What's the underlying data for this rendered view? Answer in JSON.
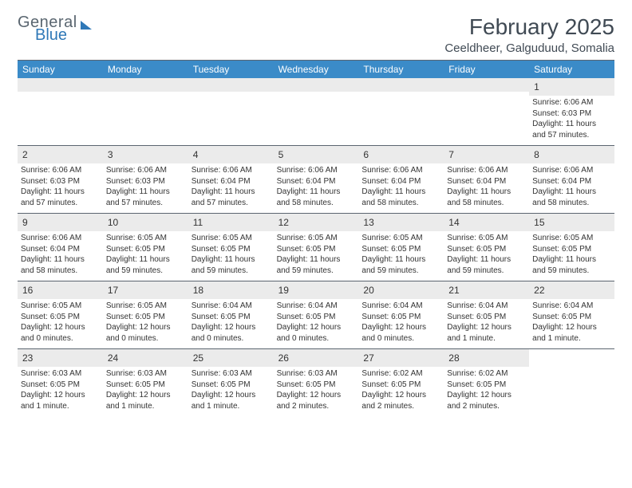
{
  "logo": {
    "text1": "General",
    "text2": "Blue"
  },
  "header": {
    "month_title": "February 2025",
    "location": "Ceeldheer, Galguduud, Somalia"
  },
  "colors": {
    "header_bar": "#3b8bc8",
    "daynum_bg": "#ebebeb",
    "rule": "#5b6570",
    "text": "#333333",
    "logo_gray": "#5a6670",
    "logo_blue": "#2f78b7",
    "background": "#ffffff"
  },
  "typography": {
    "title_fontsize": 28,
    "location_fontsize": 15,
    "dow_fontsize": 12,
    "daynum_fontsize": 12,
    "info_fontsize": 10
  },
  "days_of_week": [
    "Sunday",
    "Monday",
    "Tuesday",
    "Wednesday",
    "Thursday",
    "Friday",
    "Saturday"
  ],
  "weeks": [
    [
      {
        "n": "",
        "sunrise": "",
        "sunset": "",
        "daylight": ""
      },
      {
        "n": "",
        "sunrise": "",
        "sunset": "",
        "daylight": ""
      },
      {
        "n": "",
        "sunrise": "",
        "sunset": "",
        "daylight": ""
      },
      {
        "n": "",
        "sunrise": "",
        "sunset": "",
        "daylight": ""
      },
      {
        "n": "",
        "sunrise": "",
        "sunset": "",
        "daylight": ""
      },
      {
        "n": "",
        "sunrise": "",
        "sunset": "",
        "daylight": ""
      },
      {
        "n": "1",
        "sunrise": "Sunrise: 6:06 AM",
        "sunset": "Sunset: 6:03 PM",
        "daylight": "Daylight: 11 hours and 57 minutes."
      }
    ],
    [
      {
        "n": "2",
        "sunrise": "Sunrise: 6:06 AM",
        "sunset": "Sunset: 6:03 PM",
        "daylight": "Daylight: 11 hours and 57 minutes."
      },
      {
        "n": "3",
        "sunrise": "Sunrise: 6:06 AM",
        "sunset": "Sunset: 6:03 PM",
        "daylight": "Daylight: 11 hours and 57 minutes."
      },
      {
        "n": "4",
        "sunrise": "Sunrise: 6:06 AM",
        "sunset": "Sunset: 6:04 PM",
        "daylight": "Daylight: 11 hours and 57 minutes."
      },
      {
        "n": "5",
        "sunrise": "Sunrise: 6:06 AM",
        "sunset": "Sunset: 6:04 PM",
        "daylight": "Daylight: 11 hours and 58 minutes."
      },
      {
        "n": "6",
        "sunrise": "Sunrise: 6:06 AM",
        "sunset": "Sunset: 6:04 PM",
        "daylight": "Daylight: 11 hours and 58 minutes."
      },
      {
        "n": "7",
        "sunrise": "Sunrise: 6:06 AM",
        "sunset": "Sunset: 6:04 PM",
        "daylight": "Daylight: 11 hours and 58 minutes."
      },
      {
        "n": "8",
        "sunrise": "Sunrise: 6:06 AM",
        "sunset": "Sunset: 6:04 PM",
        "daylight": "Daylight: 11 hours and 58 minutes."
      }
    ],
    [
      {
        "n": "9",
        "sunrise": "Sunrise: 6:06 AM",
        "sunset": "Sunset: 6:04 PM",
        "daylight": "Daylight: 11 hours and 58 minutes."
      },
      {
        "n": "10",
        "sunrise": "Sunrise: 6:05 AM",
        "sunset": "Sunset: 6:05 PM",
        "daylight": "Daylight: 11 hours and 59 minutes."
      },
      {
        "n": "11",
        "sunrise": "Sunrise: 6:05 AM",
        "sunset": "Sunset: 6:05 PM",
        "daylight": "Daylight: 11 hours and 59 minutes."
      },
      {
        "n": "12",
        "sunrise": "Sunrise: 6:05 AM",
        "sunset": "Sunset: 6:05 PM",
        "daylight": "Daylight: 11 hours and 59 minutes."
      },
      {
        "n": "13",
        "sunrise": "Sunrise: 6:05 AM",
        "sunset": "Sunset: 6:05 PM",
        "daylight": "Daylight: 11 hours and 59 minutes."
      },
      {
        "n": "14",
        "sunrise": "Sunrise: 6:05 AM",
        "sunset": "Sunset: 6:05 PM",
        "daylight": "Daylight: 11 hours and 59 minutes."
      },
      {
        "n": "15",
        "sunrise": "Sunrise: 6:05 AM",
        "sunset": "Sunset: 6:05 PM",
        "daylight": "Daylight: 11 hours and 59 minutes."
      }
    ],
    [
      {
        "n": "16",
        "sunrise": "Sunrise: 6:05 AM",
        "sunset": "Sunset: 6:05 PM",
        "daylight": "Daylight: 12 hours and 0 minutes."
      },
      {
        "n": "17",
        "sunrise": "Sunrise: 6:05 AM",
        "sunset": "Sunset: 6:05 PM",
        "daylight": "Daylight: 12 hours and 0 minutes."
      },
      {
        "n": "18",
        "sunrise": "Sunrise: 6:04 AM",
        "sunset": "Sunset: 6:05 PM",
        "daylight": "Daylight: 12 hours and 0 minutes."
      },
      {
        "n": "19",
        "sunrise": "Sunrise: 6:04 AM",
        "sunset": "Sunset: 6:05 PM",
        "daylight": "Daylight: 12 hours and 0 minutes."
      },
      {
        "n": "20",
        "sunrise": "Sunrise: 6:04 AM",
        "sunset": "Sunset: 6:05 PM",
        "daylight": "Daylight: 12 hours and 0 minutes."
      },
      {
        "n": "21",
        "sunrise": "Sunrise: 6:04 AM",
        "sunset": "Sunset: 6:05 PM",
        "daylight": "Daylight: 12 hours and 1 minute."
      },
      {
        "n": "22",
        "sunrise": "Sunrise: 6:04 AM",
        "sunset": "Sunset: 6:05 PM",
        "daylight": "Daylight: 12 hours and 1 minute."
      }
    ],
    [
      {
        "n": "23",
        "sunrise": "Sunrise: 6:03 AM",
        "sunset": "Sunset: 6:05 PM",
        "daylight": "Daylight: 12 hours and 1 minute."
      },
      {
        "n": "24",
        "sunrise": "Sunrise: 6:03 AM",
        "sunset": "Sunset: 6:05 PM",
        "daylight": "Daylight: 12 hours and 1 minute."
      },
      {
        "n": "25",
        "sunrise": "Sunrise: 6:03 AM",
        "sunset": "Sunset: 6:05 PM",
        "daylight": "Daylight: 12 hours and 1 minute."
      },
      {
        "n": "26",
        "sunrise": "Sunrise: 6:03 AM",
        "sunset": "Sunset: 6:05 PM",
        "daylight": "Daylight: 12 hours and 2 minutes."
      },
      {
        "n": "27",
        "sunrise": "Sunrise: 6:02 AM",
        "sunset": "Sunset: 6:05 PM",
        "daylight": "Daylight: 12 hours and 2 minutes."
      },
      {
        "n": "28",
        "sunrise": "Sunrise: 6:02 AM",
        "sunset": "Sunset: 6:05 PM",
        "daylight": "Daylight: 12 hours and 2 minutes."
      },
      {
        "n": "",
        "sunrise": "",
        "sunset": "",
        "daylight": ""
      }
    ]
  ]
}
